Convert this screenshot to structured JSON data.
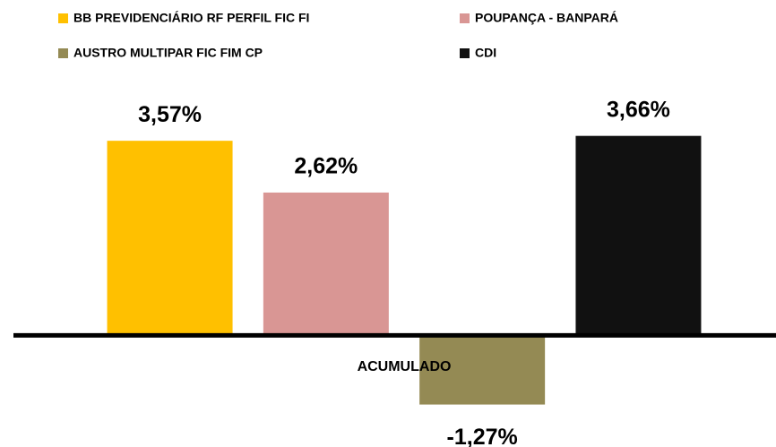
{
  "chart_data": {
    "type": "bar",
    "categories": [
      "ACUMULADO"
    ],
    "series": [
      {
        "name": "BB PREVIDENCIÁRIO RF PERFIL FIC FI",
        "color": "#FFC000",
        "values": [
          3.57
        ],
        "value_labels": [
          "3,57%"
        ]
      },
      {
        "name": "POUPANÇA - BANPARÁ",
        "color": "#D99694",
        "values": [
          2.62
        ],
        "value_labels": [
          "2,62%"
        ]
      },
      {
        "name": "AUSTRO MULTIPAR FIC FIM CP",
        "color": "#948A54",
        "values": [
          -1.27
        ],
        "value_labels": [
          "-1,27%"
        ]
      },
      {
        "name": "CDI",
        "color": "#111111",
        "values": [
          3.66
        ],
        "value_labels": [
          "3,66%"
        ]
      }
    ],
    "ylim": [
      -2,
      4
    ],
    "legend": "top"
  }
}
